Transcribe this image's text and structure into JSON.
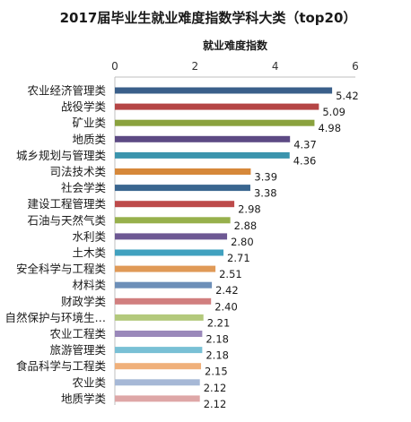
{
  "chart_data": {
    "type": "bar",
    "orientation": "horizontal",
    "title": "2017届毕业生就业难度指数学科大类（top20）",
    "xlabel": "就业难度指数",
    "xlim": [
      0,
      6
    ],
    "xticks": [
      "0",
      "2",
      "4",
      "6"
    ],
    "grid": false,
    "axis_position": "top",
    "categories": [
      "农业经济管理类",
      "战役学类",
      "矿业类",
      "地质类",
      "城乡规划与管理类",
      "司法技术类",
      "社会学类",
      "建设工程管理类",
      "石油与天然气类",
      "水利类",
      "土木类",
      "安全科学与工程类",
      "材料类",
      "财政学类",
      "自然保护与环境生…",
      "农业工程类",
      "旅游管理类",
      "食品科学与工程类",
      "农业类",
      "地质学类"
    ],
    "values": [
      5.42,
      5.09,
      4.98,
      4.37,
      4.36,
      3.39,
      3.38,
      2.98,
      2.88,
      2.8,
      2.71,
      2.51,
      2.42,
      2.4,
      2.21,
      2.18,
      2.18,
      2.15,
      2.12,
      2.12
    ],
    "value_labels": [
      "5.42",
      "5.09",
      "4.98",
      "4.37",
      "4.36",
      "3.39",
      "3.38",
      "2.98",
      "2.88",
      "2.80",
      "2.71",
      "2.51",
      "2.42",
      "2.40",
      "2.21",
      "2.18",
      "2.18",
      "2.15",
      "2.12",
      "2.12"
    ],
    "colors": [
      "#3a5f8a",
      "#b54545",
      "#8aa23e",
      "#5d4a84",
      "#3b94ad",
      "#d6883a",
      "#3a6690",
      "#bd4a4a",
      "#97b04c",
      "#6d5893",
      "#41a1bf",
      "#e09a57",
      "#6d8fb8",
      "#d17f7f",
      "#b3c97c",
      "#9a88ba",
      "#79c0d5",
      "#f0b07a",
      "#a6b8d6",
      "#dea7a7"
    ]
  }
}
